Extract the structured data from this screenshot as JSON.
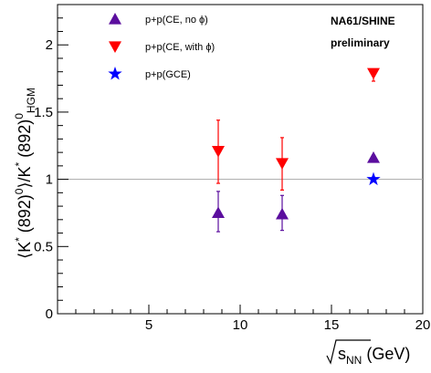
{
  "chart_data": {
    "type": "scatter",
    "xlim": [
      0,
      20
    ],
    "ylim": [
      0,
      2.3
    ],
    "x_ticks": [
      5,
      10,
      15,
      20
    ],
    "y_ticks": [
      0,
      0.5,
      1,
      1.5,
      2
    ],
    "grid": false,
    "reference_line": {
      "y": 1
    },
    "legend_position": "top-left",
    "annotations": [
      "NA61/SHINE",
      "preliminary"
    ],
    "series": [
      {
        "name": "p+p(CE, no ϕ)",
        "marker": "triangle-up",
        "color": "#5b0e9e",
        "points": [
          {
            "x": 8.8,
            "y": 0.75,
            "err_low": 0.14,
            "err_high": 0.16
          },
          {
            "x": 12.3,
            "y": 0.74,
            "err_low": 0.12,
            "err_high": 0.14
          },
          {
            "x": 17.3,
            "y": 1.16,
            "err_low": 0.0,
            "err_high": 0.0
          }
        ]
      },
      {
        "name": "p+p(CE, with ϕ)",
        "marker": "triangle-down",
        "color": "#ff0000",
        "points": [
          {
            "x": 8.8,
            "y": 1.21,
            "err_low": 0.24,
            "err_high": 0.23
          },
          {
            "x": 12.3,
            "y": 1.12,
            "err_low": 0.2,
            "err_high": 0.19
          },
          {
            "x": 17.3,
            "y": 1.79,
            "err_low": 0.06,
            "err_high": 0.02
          }
        ]
      },
      {
        "name": "p+p(GCE)",
        "marker": "star",
        "color": "#0000ff",
        "points": [
          {
            "x": 17.3,
            "y": 1.0,
            "err_low": 0.0,
            "err_high": 0.0
          }
        ]
      }
    ]
  }
}
